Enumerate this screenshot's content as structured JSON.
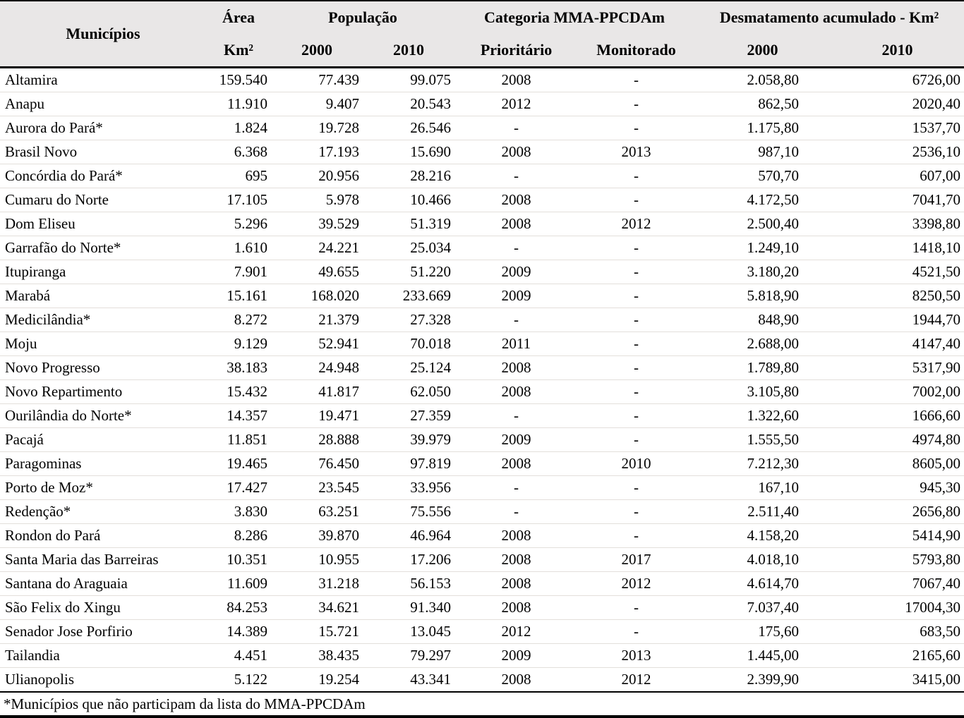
{
  "table": {
    "header": {
      "municipios": "Municípios",
      "area_title": "Área",
      "area_sub": "Km²",
      "populacao_title": "População",
      "pop_2000": "2000",
      "pop_2010": "2010",
      "categoria_title": "Categoria MMA-PPCDAm",
      "prioritario": "Prioritário",
      "monitorado": "Monitorado",
      "desmatamento_title": "Desmatamento acumulado - Km²",
      "desm_2000": "2000",
      "desm_2010": "2010"
    },
    "rows": [
      [
        "Altamira",
        "159.540",
        "77.439",
        "99.075",
        "2008",
        "-",
        "2.058,80",
        "6726,00"
      ],
      [
        "Anapu",
        "11.910",
        "9.407",
        "20.543",
        "2012",
        "-",
        "862,50",
        "2020,40"
      ],
      [
        "Aurora do Pará*",
        "1.824",
        "19.728",
        "26.546",
        "-",
        "-",
        "1.175,80",
        "1537,70"
      ],
      [
        "Brasil Novo",
        "6.368",
        "17.193",
        "15.690",
        "2008",
        "2013",
        "987,10",
        "2536,10"
      ],
      [
        "Concórdia do Pará*",
        "695",
        "20.956",
        "28.216",
        "-",
        "-",
        "570,70",
        "607,00"
      ],
      [
        "Cumaru do Norte",
        "17.105",
        "5.978",
        "10.466",
        "2008",
        "-",
        "4.172,50",
        "7041,70"
      ],
      [
        "Dom Eliseu",
        "5.296",
        "39.529",
        "51.319",
        "2008",
        "2012",
        "2.500,40",
        "3398,80"
      ],
      [
        "Garrafão do Norte*",
        "1.610",
        "24.221",
        "25.034",
        "-",
        "-",
        "1.249,10",
        "1418,10"
      ],
      [
        "Itupiranga",
        "7.901",
        "49.655",
        "51.220",
        "2009",
        "-",
        "3.180,20",
        "4521,50"
      ],
      [
        "Marabá",
        "15.161",
        "168.020",
        "233.669",
        "2009",
        "-",
        "5.818,90",
        "8250,50"
      ],
      [
        "Medicilândia*",
        "8.272",
        "21.379",
        "27.328",
        "-",
        "-",
        "848,90",
        "1944,70"
      ],
      [
        "Moju",
        "9.129",
        "52.941",
        "70.018",
        "2011",
        "-",
        "2.688,00",
        "4147,40"
      ],
      [
        "Novo Progresso",
        "38.183",
        "24.948",
        "25.124",
        "2008",
        "-",
        "1.789,80",
        "5317,90"
      ],
      [
        "Novo Repartimento",
        "15.432",
        "41.817",
        "62.050",
        "2008",
        "-",
        "3.105,80",
        "7002,00"
      ],
      [
        "Ourilândia do Norte*",
        "14.357",
        "19.471",
        "27.359",
        "-",
        "-",
        "1.322,60",
        "1666,60"
      ],
      [
        "Pacajá",
        "11.851",
        "28.888",
        "39.979",
        "2009",
        "-",
        "1.555,50",
        "4974,80"
      ],
      [
        "Paragominas",
        "19.465",
        "76.450",
        "97.819",
        "2008",
        "2010",
        "7.212,30",
        "8605,00"
      ],
      [
        "Porto de Moz*",
        "17.427",
        "23.545",
        "33.956",
        "-",
        "-",
        "167,10",
        "945,30"
      ],
      [
        "Redenção*",
        "3.830",
        "63.251",
        "75.556",
        "-",
        "-",
        "2.511,40",
        "2656,80"
      ],
      [
        "Rondon do Pará",
        "8.286",
        "39.870",
        "46.964",
        "2008",
        "-",
        "4.158,20",
        "5414,90"
      ],
      [
        "Santa Maria das Barreiras",
        "10.351",
        "10.955",
        "17.206",
        "2008",
        "2017",
        "4.018,10",
        "5793,80"
      ],
      [
        "Santana do Araguaia",
        "11.609",
        "31.218",
        "56.153",
        "2008",
        "2012",
        "4.614,70",
        "7067,40"
      ],
      [
        "São Felix do Xingu",
        "84.253",
        "34.621",
        "91.340",
        "2008",
        "-",
        "7.037,40",
        "17004,30"
      ],
      [
        "Senador Jose Porfirio",
        "14.389",
        "15.721",
        "13.045",
        "2012",
        "-",
        "175,60",
        "683,50"
      ],
      [
        "Tailandia",
        "4.451",
        "38.435",
        "79.297",
        "2009",
        "2013",
        "1.445,00",
        "2165,60"
      ],
      [
        "Ulianopolis",
        "5.122",
        "19.254",
        "43.341",
        "2008",
        "2012",
        "2.399,90",
        "3415,00"
      ]
    ],
    "footnote": "*Municípios que não participam da lista do MMA-PPCDAm"
  },
  "colors": {
    "header_bg": "#e9e7e7",
    "border": "#000000",
    "row_divider": "#e3dfdb",
    "text": "#000000"
  }
}
